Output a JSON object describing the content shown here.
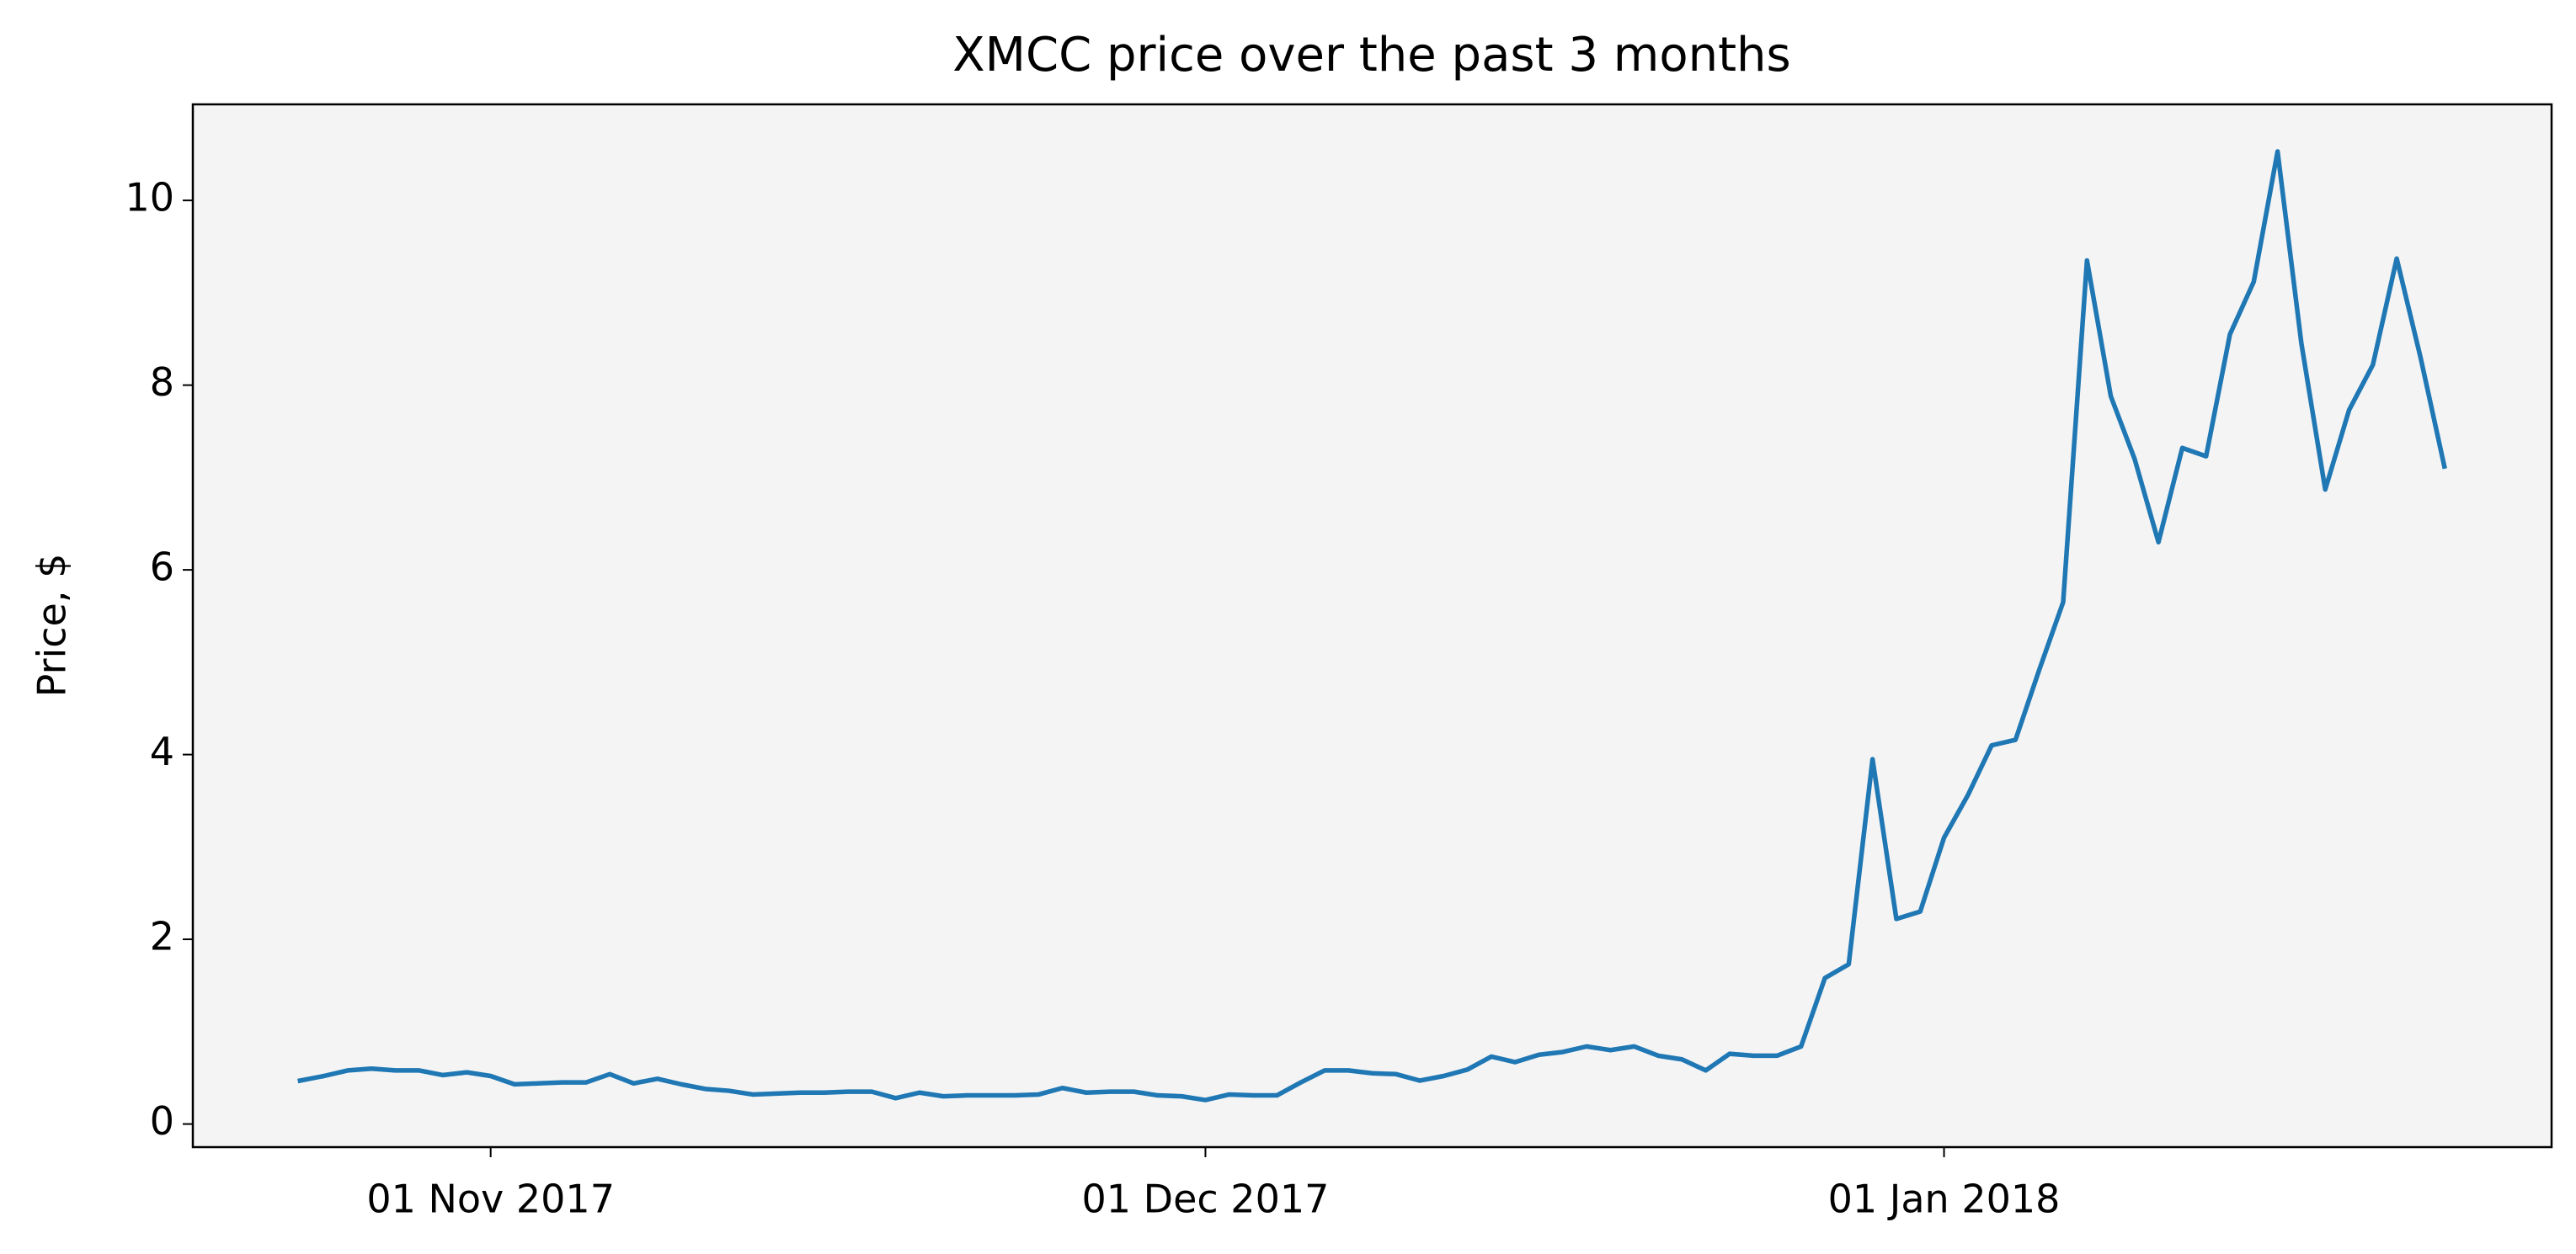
{
  "chart_data": {
    "type": "line",
    "title": "XMCC price over the past 3 months",
    "ylabel": "Price, $",
    "color": "#1f77b4",
    "x": [
      "2017-10-24",
      "2017-10-25",
      "2017-10-26",
      "2017-10-27",
      "2017-10-28",
      "2017-10-29",
      "2017-10-30",
      "2017-10-31",
      "2017-11-01",
      "2017-11-02",
      "2017-11-03",
      "2017-11-04",
      "2017-11-05",
      "2017-11-06",
      "2017-11-07",
      "2017-11-08",
      "2017-11-09",
      "2017-11-10",
      "2017-11-11",
      "2017-11-12",
      "2017-11-13",
      "2017-11-14",
      "2017-11-15",
      "2017-11-16",
      "2017-11-17",
      "2017-11-18",
      "2017-11-19",
      "2017-11-20",
      "2017-11-21",
      "2017-11-22",
      "2017-11-23",
      "2017-11-24",
      "2017-11-25",
      "2017-11-26",
      "2017-11-27",
      "2017-11-28",
      "2017-11-29",
      "2017-11-30",
      "2017-12-01",
      "2017-12-02",
      "2017-12-03",
      "2017-12-04",
      "2017-12-05",
      "2017-12-06",
      "2017-12-07",
      "2017-12-08",
      "2017-12-09",
      "2017-12-10",
      "2017-12-11",
      "2017-12-12",
      "2017-12-13",
      "2017-12-14",
      "2017-12-15",
      "2017-12-16",
      "2017-12-17",
      "2017-12-18",
      "2017-12-19",
      "2017-12-20",
      "2017-12-21",
      "2017-12-22",
      "2017-12-23",
      "2017-12-24",
      "2017-12-25",
      "2017-12-26",
      "2017-12-27",
      "2017-12-28",
      "2017-12-29",
      "2017-12-30",
      "2017-12-31",
      "2018-01-01",
      "2018-01-02",
      "2018-01-03",
      "2018-01-04",
      "2018-01-05",
      "2018-01-06",
      "2018-01-07",
      "2018-01-08",
      "2018-01-09",
      "2018-01-10",
      "2018-01-11",
      "2018-01-12",
      "2018-01-13",
      "2018-01-14",
      "2018-01-15",
      "2018-01-16",
      "2018-01-17",
      "2018-01-18",
      "2018-01-19",
      "2018-01-20",
      "2018-01-21",
      "2018-01-22"
    ],
    "values": [
      0.47,
      0.52,
      0.58,
      0.6,
      0.58,
      0.58,
      0.53,
      0.56,
      0.52,
      0.43,
      0.44,
      0.45,
      0.45,
      0.54,
      0.44,
      0.49,
      0.43,
      0.38,
      0.36,
      0.32,
      0.33,
      0.34,
      0.34,
      0.35,
      0.35,
      0.28,
      0.34,
      0.3,
      0.31,
      0.31,
      0.31,
      0.32,
      0.39,
      0.34,
      0.35,
      0.35,
      0.31,
      0.3,
      0.26,
      0.32,
      0.31,
      0.31,
      0.45,
      0.58,
      0.58,
      0.55,
      0.54,
      0.47,
      0.52,
      0.59,
      0.73,
      0.67,
      0.75,
      0.78,
      0.84,
      0.8,
      0.84,
      0.74,
      0.7,
      0.58,
      0.76,
      0.74,
      0.74,
      0.84,
      1.58,
      1.73,
      3.95,
      2.22,
      2.3,
      3.1,
      3.56,
      4.1,
      4.16,
      4.92,
      5.65,
      9.35,
      7.88,
      7.2,
      6.3,
      7.32,
      7.23,
      8.55,
      9.12,
      10.53,
      8.45,
      6.87,
      7.73,
      8.22,
      9.37,
      8.3,
      7.12
    ],
    "xlim": [
      "2017-10-19T12:00:00Z",
      "2018-01-26T12:00:00Z"
    ],
    "xticks": [
      {
        "value": "2017-11-01",
        "label": "01 Nov 2017"
      },
      {
        "value": "2017-12-01",
        "label": "01 Dec 2017"
      },
      {
        "value": "2018-01-01",
        "label": "01 Jan 2018"
      }
    ],
    "ylim": [
      -0.25,
      11.04
    ],
    "yticks": [
      0,
      2,
      4,
      6,
      8,
      10
    ]
  }
}
